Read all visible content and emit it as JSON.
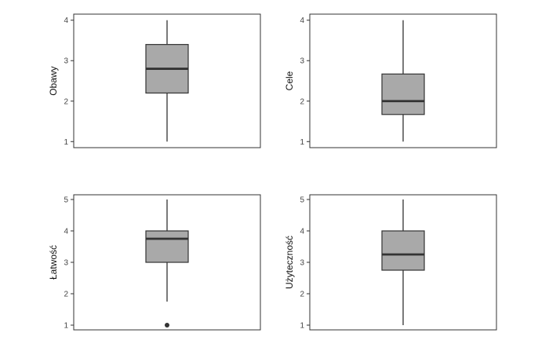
{
  "chart_data": [
    {
      "type": "boxplot",
      "ylabel": "Obawy",
      "ylim": [
        0.85,
        4.15
      ],
      "yticks": [
        1,
        2,
        3,
        4
      ],
      "stats": {
        "min": 1,
        "q1": 2.2,
        "median": 2.8,
        "q3": 3.4,
        "max": 4
      },
      "outliers": []
    },
    {
      "type": "boxplot",
      "ylabel": "Cele",
      "ylim": [
        0.85,
        4.15
      ],
      "yticks": [
        1,
        2,
        3,
        4
      ],
      "stats": {
        "min": 1,
        "q1": 1.67,
        "median": 2.0,
        "q3": 2.67,
        "max": 4
      },
      "outliers": []
    },
    {
      "type": "boxplot",
      "ylabel": "Łatwość",
      "ylim": [
        0.85,
        5.15
      ],
      "yticks": [
        1,
        2,
        3,
        4,
        5
      ],
      "stats": {
        "min": 1.75,
        "q1": 3.0,
        "median": 3.75,
        "q3": 4.0,
        "max": 5
      },
      "outliers": [
        1
      ]
    },
    {
      "type": "boxplot",
      "ylabel": "Użyteczność",
      "ylim": [
        0.85,
        5.15
      ],
      "yticks": [
        1,
        2,
        3,
        4,
        5
      ],
      "stats": {
        "min": 1,
        "q1": 2.75,
        "median": 3.25,
        "q3": 4.0,
        "max": 5
      },
      "outliers": []
    }
  ],
  "colors": {
    "box_fill": "#a9a9a9",
    "line": "#333333",
    "median": "#333333",
    "outlier": "#333333"
  }
}
